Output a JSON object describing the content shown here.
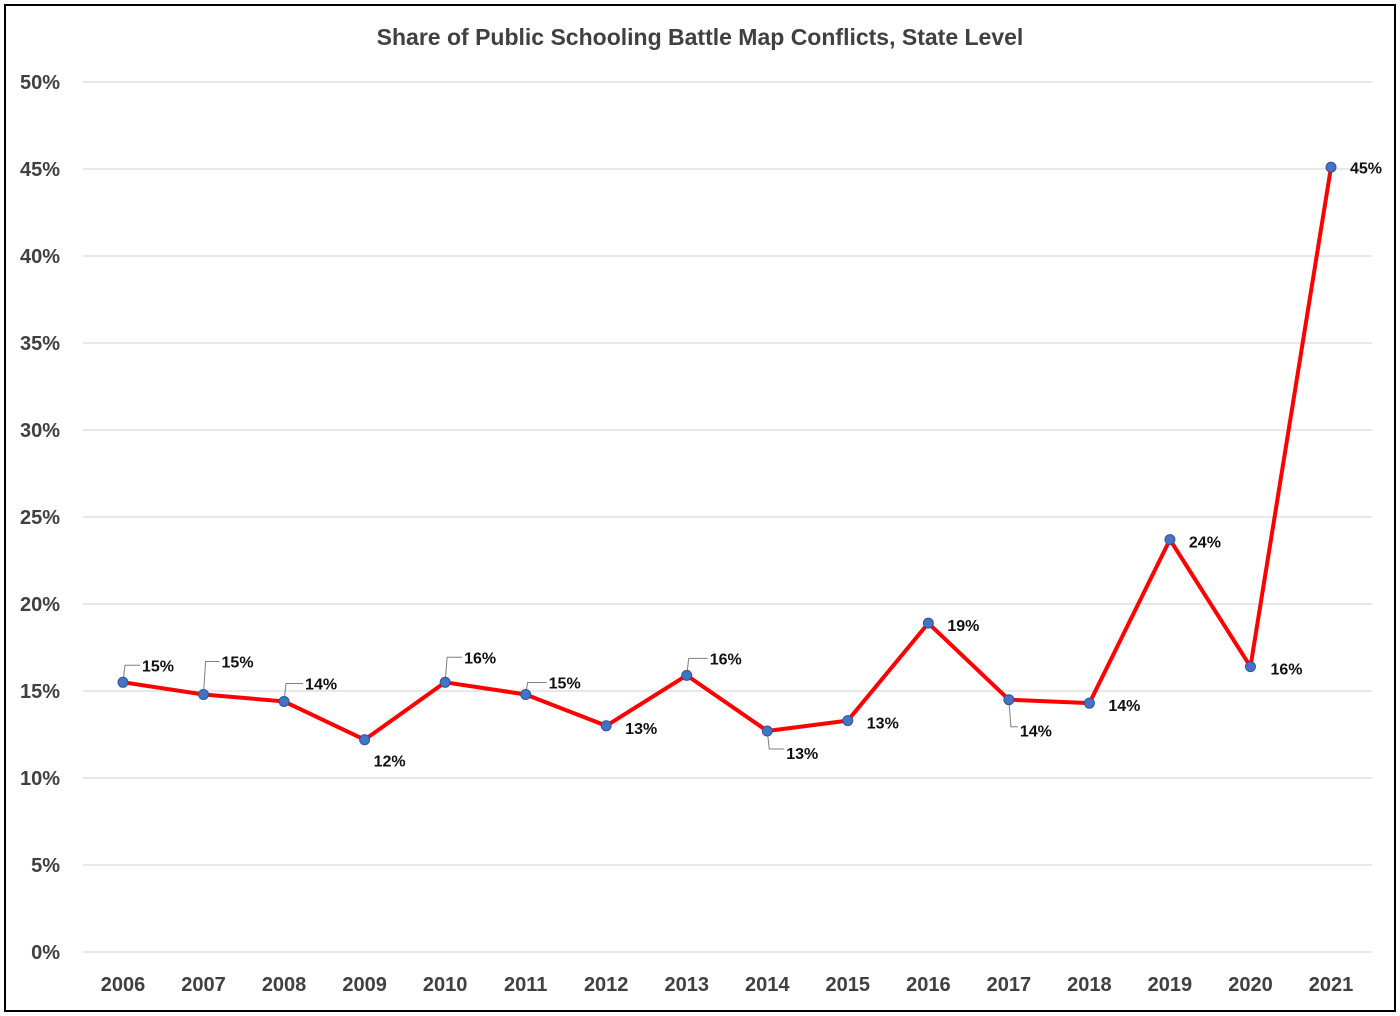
{
  "chart_data": {
    "type": "line",
    "title": "Share of Public Schooling Battle Map Conflicts, State Level",
    "xlabel": "",
    "ylabel": "",
    "categories": [
      "2006",
      "2007",
      "2008",
      "2009",
      "2010",
      "2011",
      "2012",
      "2013",
      "2014",
      "2015",
      "2016",
      "2017",
      "2018",
      "2019",
      "2020",
      "2021"
    ],
    "series": [
      {
        "values": [
          15.5,
          14.8,
          14.4,
          12.2,
          15.5,
          14.8,
          13.0,
          15.9,
          12.7,
          13.3,
          18.9,
          14.5,
          14.3,
          23.7,
          16.4,
          45.1
        ],
        "data_labels": [
          "15%",
          "15%",
          "14%",
          "12%",
          "16%",
          "15%",
          "13%",
          "16%",
          "13%",
          "13%",
          "19%",
          "14%",
          "14%",
          "24%",
          "16%",
          "45%"
        ]
      }
    ],
    "ylim": [
      0,
      50
    ],
    "yticks": [
      "0%",
      "5%",
      "10%",
      "15%",
      "20%",
      "25%",
      "30%",
      "35%",
      "40%",
      "45%",
      "50%"
    ],
    "grid": true,
    "legend": "none",
    "colors": {
      "line": "#ff0000",
      "marker": "#4472c4",
      "marker_edge": "#2f5597",
      "grid": "#d0d0d0",
      "text": "#404040",
      "border": "#000000"
    }
  }
}
